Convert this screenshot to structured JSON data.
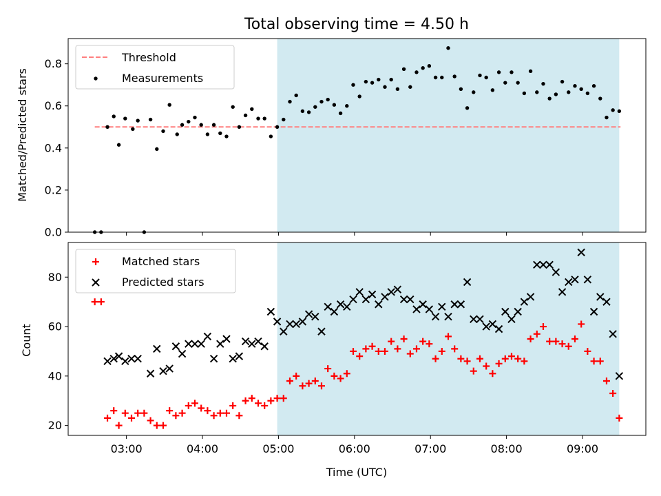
{
  "figure": {
    "title": "Total observing time = 4.50 h",
    "xlabel": "Time (UTC)"
  },
  "chart_data": [
    {
      "type": "scatter",
      "title": "Total observing time = 4.50 h",
      "ylabel": "Matched/Predicted stars",
      "xlim": [
        "02:14",
        "09:50"
      ],
      "ylim": [
        0,
        0.92
      ],
      "x_ticks": [
        "03:00",
        "04:00",
        "05:00",
        "06:00",
        "07:00",
        "08:00",
        "09:00"
      ],
      "y_ticks": [
        "0.0",
        "0.2",
        "0.4",
        "0.6",
        "0.8"
      ],
      "shaded_span": [
        "04:59",
        "09:29"
      ],
      "legend_position": "upper left",
      "threshold": {
        "name": "Threshold",
        "value": 0.5,
        "x_range": [
          "02:35",
          "09:30"
        ],
        "color": "#ff7f7f",
        "style": "dashed"
      },
      "series": [
        {
          "name": "Measurements",
          "marker": "dot",
          "color": "#000000",
          "points": [
            [
              "02:35",
              0.0
            ],
            [
              "02:40",
              0.0
            ],
            [
              "02:45",
              0.5
            ],
            [
              "02:50",
              0.55
            ],
            [
              "02:54",
              0.415
            ],
            [
              "02:59",
              0.54
            ],
            [
              "03:05",
              0.49
            ],
            [
              "03:09",
              0.53
            ],
            [
              "03:14",
              0.0
            ],
            [
              "03:19",
              0.535
            ],
            [
              "03:24",
              0.395
            ],
            [
              "03:29",
              0.48
            ],
            [
              "03:34",
              0.605
            ],
            [
              "03:40",
              0.465
            ],
            [
              "03:44",
              0.51
            ],
            [
              "03:49",
              0.525
            ],
            [
              "03:54",
              0.545
            ],
            [
              "03:59",
              0.51
            ],
            [
              "04:04",
              0.465
            ],
            [
              "04:09",
              0.51
            ],
            [
              "04:14",
              0.47
            ],
            [
              "04:19",
              0.455
            ],
            [
              "04:24",
              0.595
            ],
            [
              "04:29",
              0.5
            ],
            [
              "04:34",
              0.555
            ],
            [
              "04:39",
              0.585
            ],
            [
              "04:44",
              0.54
            ],
            [
              "04:49",
              0.54
            ],
            [
              "04:54",
              0.455
            ],
            [
              "04:59",
              0.5
            ],
            [
              "05:04",
              0.535
            ],
            [
              "05:09",
              0.62
            ],
            [
              "05:14",
              0.65
            ],
            [
              "05:19",
              0.575
            ],
            [
              "05:24",
              0.57
            ],
            [
              "05:29",
              0.595
            ],
            [
              "05:34",
              0.62
            ],
            [
              "05:39",
              0.63
            ],
            [
              "05:44",
              0.605
            ],
            [
              "05:49",
              0.565
            ],
            [
              "05:54",
              0.6
            ],
            [
              "05:59",
              0.7
            ],
            [
              "06:04",
              0.645
            ],
            [
              "06:09",
              0.715
            ],
            [
              "06:14",
              0.71
            ],
            [
              "06:19",
              0.725
            ],
            [
              "06:24",
              0.69
            ],
            [
              "06:29",
              0.725
            ],
            [
              "06:34",
              0.68
            ],
            [
              "06:39",
              0.775
            ],
            [
              "06:44",
              0.69
            ],
            [
              "06:49",
              0.76
            ],
            [
              "06:54",
              0.78
            ],
            [
              "06:59",
              0.79
            ],
            [
              "07:04",
              0.735
            ],
            [
              "07:09",
              0.735
            ],
            [
              "07:14",
              0.875
            ],
            [
              "07:19",
              0.74
            ],
            [
              "07:24",
              0.68
            ],
            [
              "07:29",
              0.59
            ],
            [
              "07:34",
              0.665
            ],
            [
              "07:39",
              0.745
            ],
            [
              "07:44",
              0.735
            ],
            [
              "07:49",
              0.675
            ],
            [
              "07:54",
              0.76
            ],
            [
              "07:59",
              0.71
            ],
            [
              "08:04",
              0.76
            ],
            [
              "08:09",
              0.71
            ],
            [
              "08:14",
              0.66
            ],
            [
              "08:19",
              0.765
            ],
            [
              "08:24",
              0.665
            ],
            [
              "08:29",
              0.705
            ],
            [
              "08:34",
              0.635
            ],
            [
              "08:39",
              0.655
            ],
            [
              "08:44",
              0.715
            ],
            [
              "08:49",
              0.665
            ],
            [
              "08:54",
              0.695
            ],
            [
              "08:59",
              0.68
            ],
            [
              "09:04",
              0.66
            ],
            [
              "09:09",
              0.695
            ],
            [
              "09:14",
              0.635
            ],
            [
              "09:19",
              0.545
            ],
            [
              "09:24",
              0.58
            ],
            [
              "09:29",
              0.575
            ]
          ]
        }
      ]
    },
    {
      "type": "scatter",
      "ylabel": "Count",
      "xlabel": "Time (UTC)",
      "xlim": [
        "02:14",
        "09:50"
      ],
      "ylim": [
        16,
        94
      ],
      "x_ticks": [
        "03:00",
        "04:00",
        "05:00",
        "06:00",
        "07:00",
        "08:00",
        "09:00"
      ],
      "y_ticks": [
        "20",
        "40",
        "60",
        "80"
      ],
      "shaded_span": [
        "04:59",
        "09:29"
      ],
      "legend_position": "upper left",
      "series": [
        {
          "name": "Matched stars",
          "marker": "plus",
          "color": "#ff0000",
          "points": [
            [
              "02:35",
              70
            ],
            [
              "02:40",
              70
            ],
            [
              "02:45",
              23
            ],
            [
              "02:50",
              26
            ],
            [
              "02:54",
              20
            ],
            [
              "02:59",
              25
            ],
            [
              "03:04",
              23
            ],
            [
              "03:09",
              25
            ],
            [
              "03:14",
              25
            ],
            [
              "03:19",
              22
            ],
            [
              "03:24",
              20
            ],
            [
              "03:29",
              20
            ],
            [
              "03:34",
              26
            ],
            [
              "03:39",
              24
            ],
            [
              "03:44",
              25
            ],
            [
              "03:49",
              28
            ],
            [
              "03:54",
              29
            ],
            [
              "03:59",
              27
            ],
            [
              "04:04",
              26
            ],
            [
              "04:09",
              24
            ],
            [
              "04:14",
              25
            ],
            [
              "04:19",
              25
            ],
            [
              "04:24",
              28
            ],
            [
              "04:29",
              24
            ],
            [
              "04:34",
              30
            ],
            [
              "04:39",
              31
            ],
            [
              "04:44",
              29
            ],
            [
              "04:49",
              28
            ],
            [
              "04:54",
              30
            ],
            [
              "04:59",
              31
            ],
            [
              "05:04",
              31
            ],
            [
              "05:09",
              38
            ],
            [
              "05:14",
              40
            ],
            [
              "05:19",
              36
            ],
            [
              "05:24",
              37
            ],
            [
              "05:29",
              38
            ],
            [
              "05:34",
              36
            ],
            [
              "05:39",
              43
            ],
            [
              "05:44",
              40
            ],
            [
              "05:49",
              39
            ],
            [
              "05:54",
              41
            ],
            [
              "05:59",
              50
            ],
            [
              "06:04",
              48
            ],
            [
              "06:09",
              51
            ],
            [
              "06:14",
              52
            ],
            [
              "06:19",
              50
            ],
            [
              "06:24",
              50
            ],
            [
              "06:29",
              54
            ],
            [
              "06:34",
              51
            ],
            [
              "06:39",
              55
            ],
            [
              "06:44",
              49
            ],
            [
              "06:49",
              51
            ],
            [
              "06:54",
              54
            ],
            [
              "06:59",
              53
            ],
            [
              "07:04",
              47
            ],
            [
              "07:09",
              50
            ],
            [
              "07:14",
              56
            ],
            [
              "07:19",
              51
            ],
            [
              "07:24",
              47
            ],
            [
              "07:29",
              46
            ],
            [
              "07:34",
              42
            ],
            [
              "07:39",
              47
            ],
            [
              "07:44",
              44
            ],
            [
              "07:49",
              41
            ],
            [
              "07:54",
              45
            ],
            [
              "07:59",
              47
            ],
            [
              "08:04",
              48
            ],
            [
              "08:09",
              47
            ],
            [
              "08:14",
              46
            ],
            [
              "08:19",
              55
            ],
            [
              "08:24",
              57
            ],
            [
              "08:29",
              60
            ],
            [
              "08:34",
              54
            ],
            [
              "08:39",
              54
            ],
            [
              "08:44",
              53
            ],
            [
              "08:49",
              52
            ],
            [
              "08:54",
              55
            ],
            [
              "08:59",
              61
            ],
            [
              "09:04",
              50
            ],
            [
              "09:09",
              46
            ],
            [
              "09:14",
              46
            ],
            [
              "09:19",
              38
            ],
            [
              "09:24",
              33
            ],
            [
              "09:29",
              23
            ]
          ]
        },
        {
          "name": "Predicted stars",
          "marker": "x",
          "color": "#000000",
          "points": [
            [
              "02:45",
              46
            ],
            [
              "02:50",
              47
            ],
            [
              "02:54",
              48
            ],
            [
              "02:59",
              46
            ],
            [
              "03:04",
              47
            ],
            [
              "03:09",
              47
            ],
            [
              "03:19",
              41
            ],
            [
              "03:24",
              51
            ],
            [
              "03:29",
              42
            ],
            [
              "03:34",
              43
            ],
            [
              "03:39",
              52
            ],
            [
              "03:44",
              49
            ],
            [
              "03:49",
              53
            ],
            [
              "03:54",
              53
            ],
            [
              "03:59",
              53
            ],
            [
              "04:04",
              56
            ],
            [
              "04:09",
              47
            ],
            [
              "04:14",
              53
            ],
            [
              "04:19",
              55
            ],
            [
              "04:24",
              47
            ],
            [
              "04:29",
              48
            ],
            [
              "04:34",
              54
            ],
            [
              "04:39",
              53
            ],
            [
              "04:44",
              54
            ],
            [
              "04:49",
              52
            ],
            [
              "04:54",
              66
            ],
            [
              "04:59",
              62
            ],
            [
              "05:04",
              58
            ],
            [
              "05:09",
              61
            ],
            [
              "05:14",
              61
            ],
            [
              "05:19",
              62
            ],
            [
              "05:24",
              65
            ],
            [
              "05:29",
              64
            ],
            [
              "05:34",
              58
            ],
            [
              "05:39",
              68
            ],
            [
              "05:44",
              66
            ],
            [
              "05:49",
              69
            ],
            [
              "05:54",
              68
            ],
            [
              "05:59",
              71
            ],
            [
              "06:04",
              74
            ],
            [
              "06:09",
              71
            ],
            [
              "06:14",
              73
            ],
            [
              "06:19",
              69
            ],
            [
              "06:24",
              72
            ],
            [
              "06:29",
              74
            ],
            [
              "06:34",
              75
            ],
            [
              "06:39",
              71
            ],
            [
              "06:44",
              71
            ],
            [
              "06:49",
              67
            ],
            [
              "06:54",
              69
            ],
            [
              "06:59",
              67
            ],
            [
              "07:04",
              64
            ],
            [
              "07:09",
              68
            ],
            [
              "07:14",
              64
            ],
            [
              "07:19",
              69
            ],
            [
              "07:24",
              69
            ],
            [
              "07:29",
              78
            ],
            [
              "07:34",
              63
            ],
            [
              "07:39",
              63
            ],
            [
              "07:44",
              60
            ],
            [
              "07:49",
              61
            ],
            [
              "07:54",
              59
            ],
            [
              "07:59",
              66
            ],
            [
              "08:04",
              63
            ],
            [
              "08:09",
              66
            ],
            [
              "08:14",
              70
            ],
            [
              "08:19",
              72
            ],
            [
              "08:24",
              85
            ],
            [
              "08:29",
              85
            ],
            [
              "08:34",
              85
            ],
            [
              "08:39",
              82
            ],
            [
              "08:44",
              74
            ],
            [
              "08:49",
              78
            ],
            [
              "08:54",
              79
            ],
            [
              "08:59",
              90
            ],
            [
              "09:04",
              79
            ],
            [
              "09:09",
              66
            ],
            [
              "09:14",
              72
            ],
            [
              "09:19",
              70
            ],
            [
              "09:24",
              57
            ],
            [
              "09:29",
              40
            ]
          ]
        }
      ]
    }
  ]
}
